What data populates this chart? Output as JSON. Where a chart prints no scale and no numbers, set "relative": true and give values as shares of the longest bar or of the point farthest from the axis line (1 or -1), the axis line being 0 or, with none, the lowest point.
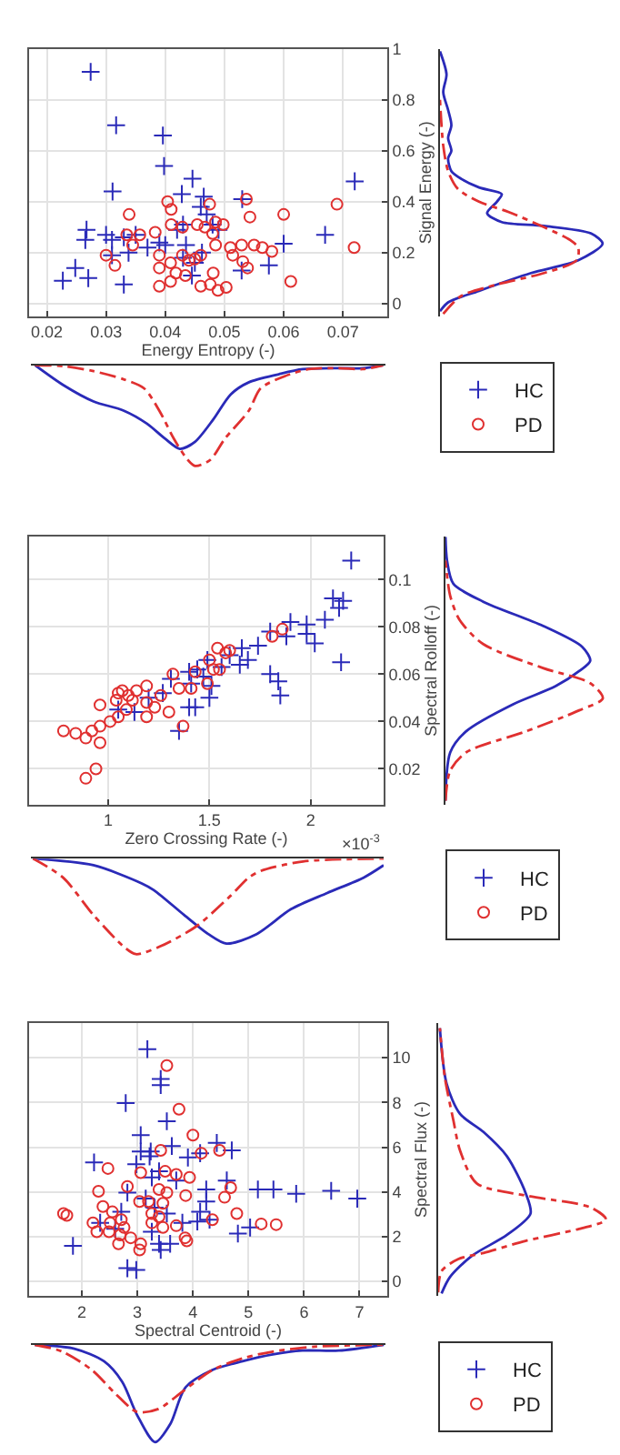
{
  "chart_data": [
    {
      "type": "scatter",
      "xlabel": "Energy Entropy (-)",
      "ylabel": "Signal Energy (-)",
      "xlim": [
        0.017,
        0.0775
      ],
      "xticks": [
        0.02,
        0.03,
        0.04,
        0.05,
        0.06,
        0.07
      ],
      "ylim": [
        -0.05,
        1
      ],
      "yticks": [
        0,
        0.2,
        0.4,
        0.6,
        0.8,
        1
      ],
      "grid": true,
      "legend": "bottom right",
      "series": [
        {
          "name": "HC",
          "color": "#2a2ab8",
          "marker": "cross",
          "x": [
            0.0274,
            0.0317,
            0.0396,
            0.0398,
            0.0311,
            0.0446,
            0.0428,
            0.0465,
            0.053,
            0.072,
            0.0267,
            0.0265,
            0.03,
            0.031,
            0.033,
            0.035,
            0.037,
            0.039,
            0.04,
            0.042,
            0.043,
            0.046,
            0.047,
            0.048,
            0.049,
            0.0248,
            0.0227,
            0.027,
            0.033,
            0.031,
            0.0338,
            0.043,
            0.045,
            0.0435,
            0.0462,
            0.0445,
            0.0529,
            0.0575,
            0.06,
            0.067
          ],
          "values": [
            0.91,
            0.7,
            0.66,
            0.54,
            0.44,
            0.49,
            0.43,
            0.42,
            0.41,
            0.48,
            0.29,
            0.25,
            0.27,
            0.25,
            0.26,
            0.27,
            0.22,
            0.24,
            0.23,
            0.29,
            0.31,
            0.38,
            0.35,
            0.31,
            0.29,
            0.14,
            0.09,
            0.1,
            0.075,
            0.19,
            0.2,
            0.18,
            0.16,
            0.23,
            0.2,
            0.11,
            0.13,
            0.15,
            0.235,
            0.27
          ]
        },
        {
          "name": "PD",
          "color": "#e03030",
          "marker": "circle",
          "x": [
            0.0404,
            0.041,
            0.0339,
            0.0475,
            0.0543,
            0.0537,
            0.06,
            0.069,
            0.0719,
            0.0335,
            0.0357,
            0.0383,
            0.041,
            0.0429,
            0.0454,
            0.0467,
            0.0485,
            0.0498,
            0.048,
            0.03,
            0.0315,
            0.0345,
            0.039,
            0.0409,
            0.039,
            0.0429,
            0.044,
            0.045,
            0.046,
            0.0485,
            0.051,
            0.0529,
            0.055,
            0.0564,
            0.058,
            0.0531,
            0.0514,
            0.0539,
            0.0481,
            0.0418,
            0.0409,
            0.039,
            0.046,
            0.0476,
            0.0489,
            0.0503,
            0.0612,
            0.0434
          ],
          "values": [
            0.4,
            0.37,
            0.35,
            0.39,
            0.34,
            0.41,
            0.35,
            0.39,
            0.22,
            0.27,
            0.27,
            0.28,
            0.31,
            0.3,
            0.31,
            0.3,
            0.32,
            0.31,
            0.275,
            0.19,
            0.15,
            0.23,
            0.19,
            0.16,
            0.14,
            0.19,
            0.17,
            0.175,
            0.19,
            0.23,
            0.22,
            0.23,
            0.23,
            0.22,
            0.205,
            0.165,
            0.19,
            0.14,
            0.12,
            0.12,
            0.087,
            0.068,
            0.068,
            0.075,
            0.052,
            0.064,
            0.087,
            0.11
          ]
        }
      ]
    },
    {
      "type": "line",
      "relative": true,
      "orientation": "horizontal",
      "ylim": [
        -0.05,
        1
      ],
      "tick_labels": false,
      "series": [
        {
          "color": "#2a2ab8",
          "line_style": "solid",
          "x": [
            -0.03,
            0.005,
            0.05,
            0.12,
            0.17,
            0.235,
            0.275,
            0.305,
            0.32,
            0.355,
            0.4,
            0.43,
            0.456,
            0.49,
            0.52,
            0.57,
            0.6,
            0.65,
            0.7,
            0.76,
            0.83,
            0.9,
            0.99
          ],
          "values": [
            0,
            0.05,
            0.24,
            0.56,
            0.85,
            1,
            0.93,
            0.64,
            0.38,
            0.29,
            0.35,
            0.38,
            0.24,
            0.13,
            0.07,
            0.05,
            0.07,
            0.05,
            0.07,
            0.05,
            0.02,
            0.04,
            0
          ]
        },
        {
          "color": "#e03030",
          "line_style": "dashed",
          "x": [
            -0.04,
            0.03,
            0.075,
            0.12,
            0.17,
            0.22,
            0.25,
            0.3,
            0.36,
            0.4,
            0.45,
            0.52,
            0.62,
            0.8
          ],
          "values": [
            0.02,
            0.13,
            0.35,
            0.64,
            0.84,
            0.85,
            0.8,
            0.64,
            0.42,
            0.24,
            0.11,
            0.05,
            0.02,
            0
          ]
        }
      ]
    },
    {
      "type": "line",
      "relative": true,
      "xlim": [
        0.017,
        0.0775
      ],
      "tick_labels": false,
      "series": [
        {
          "color": "#2a2ab8",
          "line_style": "solid",
          "x": [
            0.0177,
            0.0226,
            0.0277,
            0.0328,
            0.0368,
            0.0399,
            0.0424,
            0.045,
            0.0481,
            0.0511,
            0.0542,
            0.0593,
            0.0634,
            0.0695,
            0.0736,
            0.0771
          ],
          "values": [
            0,
            -0.2,
            -0.36,
            -0.45,
            -0.58,
            -0.73,
            -0.83,
            -0.76,
            -0.54,
            -0.29,
            -0.17,
            -0.09,
            -0.04,
            -0.03,
            -0.03,
            0
          ]
        },
        {
          "color": "#e03030",
          "line_style": "dashed",
          "x": [
            0.0177,
            0.0226,
            0.0277,
            0.0328,
            0.0363,
            0.0389,
            0.0414,
            0.0435,
            0.045,
            0.0476,
            0.0501,
            0.0542,
            0.0562,
            0.0603,
            0.0644,
            0.0695,
            0.0736,
            0.0771
          ],
          "values": [
            0,
            -0.01,
            -0.06,
            -0.14,
            -0.23,
            -0.45,
            -0.73,
            -0.92,
            -1,
            -0.94,
            -0.73,
            -0.45,
            -0.23,
            -0.11,
            -0.04,
            -0.03,
            -0.04,
            0
          ]
        }
      ]
    },
    {
      "type": "scatter",
      "xlabel": "Zero Crossing Rate (-)",
      "ylabel": "Spectral Rolloff (-)",
      "xlim": [
        0.61,
        2.36
      ],
      "xticks": [
        1,
        1.5,
        2
      ],
      "ylim": [
        0.005,
        0.118
      ],
      "yticks": [
        0.02,
        0.04,
        0.06,
        0.08,
        0.1
      ],
      "grid": true,
      "legend": "bottom right",
      "annotations": [
        "×10$^{-3}$"
      ],
      "series": [
        {
          "name": "HC",
          "color": "#2a2ab8",
          "marker": "cross",
          "x": [
            2.2,
            2.11,
            2.16,
            2.14,
            2.07,
            1.98,
            1.9,
            1.98,
            2.02,
            2.15,
            1.88,
            1.8,
            1.74,
            1.66,
            1.65,
            1.69,
            1.6,
            1.56,
            1.49,
            1.44,
            1.4,
            1.8,
            1.84,
            1.85,
            1.51,
            1.5,
            1.41,
            1.43,
            1.4,
            1.35,
            1.27,
            1.2,
            1.13,
            1.05,
            1.31,
            1.47
          ],
          "values": [
            0.108,
            0.092,
            0.091,
            0.088,
            0.083,
            0.081,
            0.082,
            0.077,
            0.073,
            0.065,
            0.076,
            0.078,
            0.072,
            0.071,
            0.064,
            0.066,
            0.068,
            0.063,
            0.066,
            0.062,
            0.061,
            0.06,
            0.057,
            0.051,
            0.055,
            0.05,
            0.056,
            0.046,
            0.046,
            0.036,
            0.052,
            0.05,
            0.044,
            0.045,
            0.058,
            0.059
          ]
        },
        {
          "name": "PD",
          "color": "#e03030",
          "marker": "circle",
          "x": [
            0.78,
            0.84,
            0.89,
            0.92,
            0.96,
            0.94,
            0.89,
            0.96,
            1.01,
            1.05,
            1.09,
            0.96,
            1.04,
            1.1,
            1.14,
            1.19,
            1.12,
            1.19,
            1.19,
            1.23,
            1.3,
            1.37,
            1.26,
            1.32,
            1.35,
            1.41,
            1.49,
            1.43,
            1.5,
            1.54,
            1.58,
            1.52,
            1.55,
            1.6,
            1.86,
            1.81,
            1.07,
            1.05
          ],
          "values": [
            0.036,
            0.035,
            0.033,
            0.036,
            0.031,
            0.02,
            0.016,
            0.038,
            0.04,
            0.042,
            0.045,
            0.047,
            0.049,
            0.051,
            0.053,
            0.055,
            0.049,
            0.048,
            0.042,
            0.046,
            0.044,
            0.038,
            0.051,
            0.06,
            0.054,
            0.054,
            0.056,
            0.061,
            0.066,
            0.071,
            0.069,
            0.062,
            0.062,
            0.07,
            0.079,
            0.076,
            0.053,
            0.052
          ]
        }
      ]
    },
    {
      "type": "line",
      "relative": true,
      "orientation": "horizontal",
      "ylim": [
        0.005,
        0.118
      ],
      "tick_labels": false,
      "series": [
        {
          "color": "#2a2ab8",
          "line_style": "solid",
          "x": [
            0.0065,
            0.0269,
            0.0358,
            0.0473,
            0.0549,
            0.0613,
            0.0656,
            0.0715,
            0.0804,
            0.0906,
            0.0982,
            0.108,
            0.118
          ],
          "values": [
            0,
            0.03,
            0.13,
            0.43,
            0.7,
            0.85,
            0.92,
            0.87,
            0.62,
            0.24,
            0.05,
            0.01,
            0
          ]
        },
        {
          "color": "#e03030",
          "line_style": "dashed",
          "x": [
            0.0065,
            0.0192,
            0.0269,
            0.0358,
            0.0447,
            0.0498,
            0.0562,
            0.0626,
            0.0727,
            0.0829,
            0.0931,
            0.108
          ],
          "values": [
            0,
            0.03,
            0.13,
            0.51,
            0.85,
            1,
            0.92,
            0.62,
            0.24,
            0.09,
            0.03,
            0
          ]
        }
      ]
    },
    {
      "type": "line",
      "relative": true,
      "xlim": [
        0.61,
        2.36
      ],
      "tick_labels": false,
      "series": [
        {
          "color": "#2a2ab8",
          "line_style": "solid",
          "x": [
            0.62,
            0.92,
            1.16,
            1.22,
            1.37,
            1.49,
            1.58,
            1.73,
            1.9,
            2.08,
            2.26,
            2.36
          ],
          "values": [
            0,
            -0.07,
            -0.26,
            -0.33,
            -0.59,
            -0.79,
            -0.89,
            -0.79,
            -0.53,
            -0.36,
            -0.2,
            -0.07
          ]
        },
        {
          "color": "#e03030",
          "line_style": "dashed",
          "x": [
            0.62,
            0.77,
            0.92,
            1.07,
            1.13,
            1.25,
            1.43,
            1.6,
            1.69,
            1.75,
            1.96,
            2.36
          ],
          "values": [
            0,
            -0.2,
            -0.59,
            -0.92,
            -1,
            -0.92,
            -0.71,
            -0.39,
            -0.2,
            -0.13,
            -0.03,
            0
          ]
        }
      ]
    },
    {
      "type": "scatter",
      "xlabel": "Spectral Centroid (-)",
      "ylabel": "Spectral Flux (-)",
      "xlim": [
        1.05,
        7.5
      ],
      "xticks": [
        2,
        3,
        4,
        5,
        6,
        7
      ],
      "ylim": [
        -0.65,
        11.55
      ],
      "yticks": [
        0,
        2,
        4,
        6,
        8,
        10
      ],
      "grid": true,
      "legend": "bottom right",
      "series": [
        {
          "name": "HC",
          "color": "#2a2ab8",
          "marker": "cross",
          "x": [
            3.18,
            3.42,
            3.42,
            2.79,
            3.53,
            3.06,
            3.06,
            3.24,
            3.22,
            3.62,
            3.91,
            4.13,
            4.43,
            4.7,
            2.22,
            2.98,
            3.39,
            3.26,
            3.7,
            4.24,
            4.61,
            5.17,
            5.45,
            5.86,
            6.49,
            6.96,
            2.82,
            3.15,
            3.31,
            3.53,
            4.24,
            4.13,
            3.81,
            4.08,
            2.71,
            2.33,
            2.6,
            3.26,
            3.39,
            3.59,
            3.42,
            4.81,
            5.03,
            1.84,
            2.82,
            2.98,
            4.3
          ],
          "values": [
            10.38,
            9.05,
            8.78,
            7.97,
            7.16,
            6.54,
            5.81,
            5.81,
            5.59,
            6.05,
            5.54,
            5.73,
            6.19,
            5.86,
            5.32,
            5.24,
            4.92,
            4.65,
            4.51,
            4.11,
            4.51,
            4.11,
            4.11,
            3.92,
            4.05,
            3.7,
            3.97,
            3.7,
            3.3,
            3.03,
            3.57,
            3.11,
            2.62,
            2.68,
            3.11,
            2.62,
            2.35,
            2.22,
            1.68,
            1.68,
            1.41,
            2.14,
            2.41,
            1.59,
            0.59,
            0.51,
            2.76
          ]
        },
        {
          "name": "PD",
          "color": "#e03030",
          "marker": "circle",
          "x": [
            3.53,
            3.75,
            4.0,
            3.42,
            4.15,
            4.48,
            2.47,
            3.06,
            3.5,
            3.7,
            3.94,
            2.82,
            3.39,
            3.53,
            2.3,
            4.68,
            4.57,
            3.87,
            3.04,
            3.2,
            3.46,
            1.67,
            1.73,
            2.38,
            2.55,
            2.71,
            2.2,
            2.51,
            2.76,
            2.27,
            2.49,
            2.69,
            2.88,
            2.66,
            3.06,
            3.04,
            3.26,
            3.46,
            3.7,
            3.86,
            3.89,
            4.35,
            4.79,
            5.23,
            5.5,
            3.26,
            3.39
          ],
          "values": [
            9.65,
            7.7,
            6.54,
            5.86,
            5.73,
            5.86,
            5.05,
            4.86,
            4.92,
            4.78,
            4.65,
            4.24,
            4.11,
            3.97,
            4.03,
            4.19,
            3.76,
            3.84,
            3.57,
            3.57,
            3.49,
            3.03,
            2.95,
            3.35,
            3.11,
            2.76,
            2.62,
            2.62,
            2.41,
            2.22,
            2.22,
            2.08,
            1.95,
            1.68,
            1.68,
            1.41,
            2.62,
            2.41,
            2.49,
            1.95,
            1.81,
            2.76,
            3.03,
            2.57,
            2.54,
            3.03,
            2.89
          ]
        }
      ]
    },
    {
      "type": "line",
      "relative": true,
      "orientation": "horizontal",
      "ylim": [
        -0.65,
        11.55
      ],
      "tick_labels": false,
      "series": [
        {
          "color": "#2a2ab8",
          "line_style": "solid",
          "x": [
            -0.54,
            0.19,
            1.14,
            2.08,
            3.03,
            3.97,
            5.59,
            6.68,
            7.49,
            8.84,
            11.32
          ],
          "values": [
            0.02,
            0.07,
            0.2,
            0.41,
            0.55,
            0.52,
            0.41,
            0.27,
            0.13,
            0.05,
            0.01
          ]
        },
        {
          "color": "#e03030",
          "line_style": "dashed",
          "x": [
            -0.49,
            0.46,
            1.0,
            1.27,
            1.81,
            2.35,
            2.76,
            3.3,
            3.84,
            4.38,
            5.86,
            7.22,
            9.11,
            11.32
          ],
          "values": [
            0,
            0.02,
            0.12,
            0.27,
            0.52,
            0.84,
            1,
            0.91,
            0.52,
            0.23,
            0.13,
            0.09,
            0.04,
            0.01
          ]
        }
      ]
    },
    {
      "type": "line",
      "relative": true,
      "xlim": [
        1.05,
        7.5
      ],
      "tick_labels": false,
      "series": [
        {
          "color": "#2a2ab8",
          "line_style": "solid",
          "x": [
            1.12,
            1.84,
            2.38,
            2.71,
            2.98,
            3.31,
            3.59,
            3.86,
            4.35,
            4.9,
            5.45,
            5.99,
            6.65,
            7.47
          ],
          "values": [
            0,
            -0.04,
            -0.17,
            -0.38,
            -0.72,
            -1,
            -0.81,
            -0.44,
            -0.26,
            -0.17,
            -0.1,
            -0.06,
            -0.06,
            0
          ]
        },
        {
          "color": "#e03030",
          "line_style": "dashed",
          "x": [
            1.12,
            1.62,
            2.16,
            2.6,
            2.98,
            3.37,
            3.81,
            4.35,
            4.9,
            5.45,
            6.21,
            7.47
          ],
          "values": [
            0,
            -0.07,
            -0.26,
            -0.51,
            -0.69,
            -0.66,
            -0.48,
            -0.26,
            -0.14,
            -0.07,
            -0.02,
            0
          ]
        }
      ]
    }
  ]
}
